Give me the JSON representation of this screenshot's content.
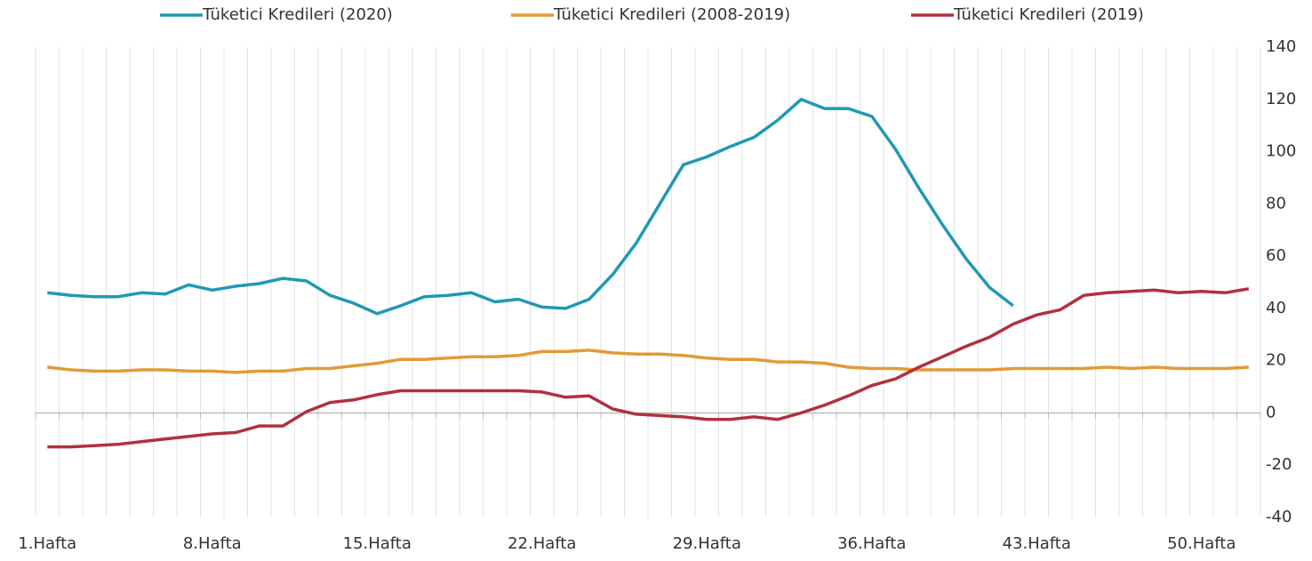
{
  "chart_data": {
    "type": "line",
    "categories": [
      "1.Hafta",
      null,
      null,
      null,
      null,
      null,
      null,
      "8.Hafta",
      null,
      null,
      null,
      null,
      null,
      null,
      "15.Hafta",
      null,
      null,
      null,
      null,
      null,
      null,
      "22.Hafta",
      null,
      null,
      null,
      null,
      null,
      null,
      "29.Hafta",
      null,
      null,
      null,
      null,
      null,
      null,
      "36.Hafta",
      null,
      null,
      null,
      null,
      null,
      null,
      "43.Hafta",
      null,
      null,
      null,
      null,
      null,
      null,
      "50.Hafta",
      null,
      null
    ],
    "series": [
      {
        "name": "Tüketici Kredileri (2020)",
        "color": "#1f99b4",
        "values": [
          46,
          45,
          44.5,
          44.5,
          46,
          45.5,
          49,
          47,
          48.5,
          49.5,
          51.5,
          50.5,
          45,
          42,
          38,
          41,
          44.5,
          45,
          46,
          42.5,
          43.5,
          40.5,
          40,
          43.5,
          53,
          65,
          80,
          95,
          98,
          102,
          105.5,
          112,
          120,
          116.5,
          116.5,
          113.5,
          101,
          86,
          72,
          59,
          48,
          41,
          null,
          null,
          null,
          null,
          null,
          null,
          null,
          null,
          null,
          null
        ]
      },
      {
        "name": "Tüketici Kredileri (2008-2019)",
        "color": "#e49a35",
        "values": [
          17.5,
          16.5,
          16,
          16,
          16.5,
          16.5,
          16,
          16,
          15.5,
          16,
          16,
          17,
          17,
          18,
          19,
          20.5,
          20.5,
          21,
          21.5,
          21.5,
          22,
          23.5,
          23.5,
          24,
          23,
          22.5,
          22.5,
          22,
          21,
          20.5,
          20.5,
          19.5,
          19.5,
          19,
          17.5,
          17,
          17,
          16.5,
          16.5,
          16.5,
          16.5,
          17,
          17,
          17,
          17,
          17.5,
          17,
          17.5,
          17,
          17,
          17,
          17.5
        ]
      },
      {
        "name": "Tüketici Kredileri (2019)",
        "color": "#b1303e",
        "values": [
          -13,
          -13,
          -12.5,
          -12,
          -11,
          -10,
          -9,
          -8,
          -7.5,
          -5,
          -5,
          0.5,
          4,
          5,
          7,
          8.5,
          8.5,
          8.5,
          8.5,
          8.5,
          8.5,
          8,
          6,
          6.5,
          1.5,
          -0.5,
          -1,
          -1.5,
          -2.5,
          -2.5,
          -1.5,
          -2.5,
          0,
          3,
          6.5,
          10.5,
          13,
          17.5,
          21.5,
          25.5,
          29,
          34,
          37.5,
          39.5,
          45,
          46,
          46.5,
          47,
          46,
          46.5,
          46,
          47.5
        ]
      }
    ],
    "ylim": [
      -40,
      140
    ],
    "yticks": [
      -40,
      -20,
      0,
      20,
      40,
      60,
      80,
      100,
      120,
      140
    ]
  }
}
